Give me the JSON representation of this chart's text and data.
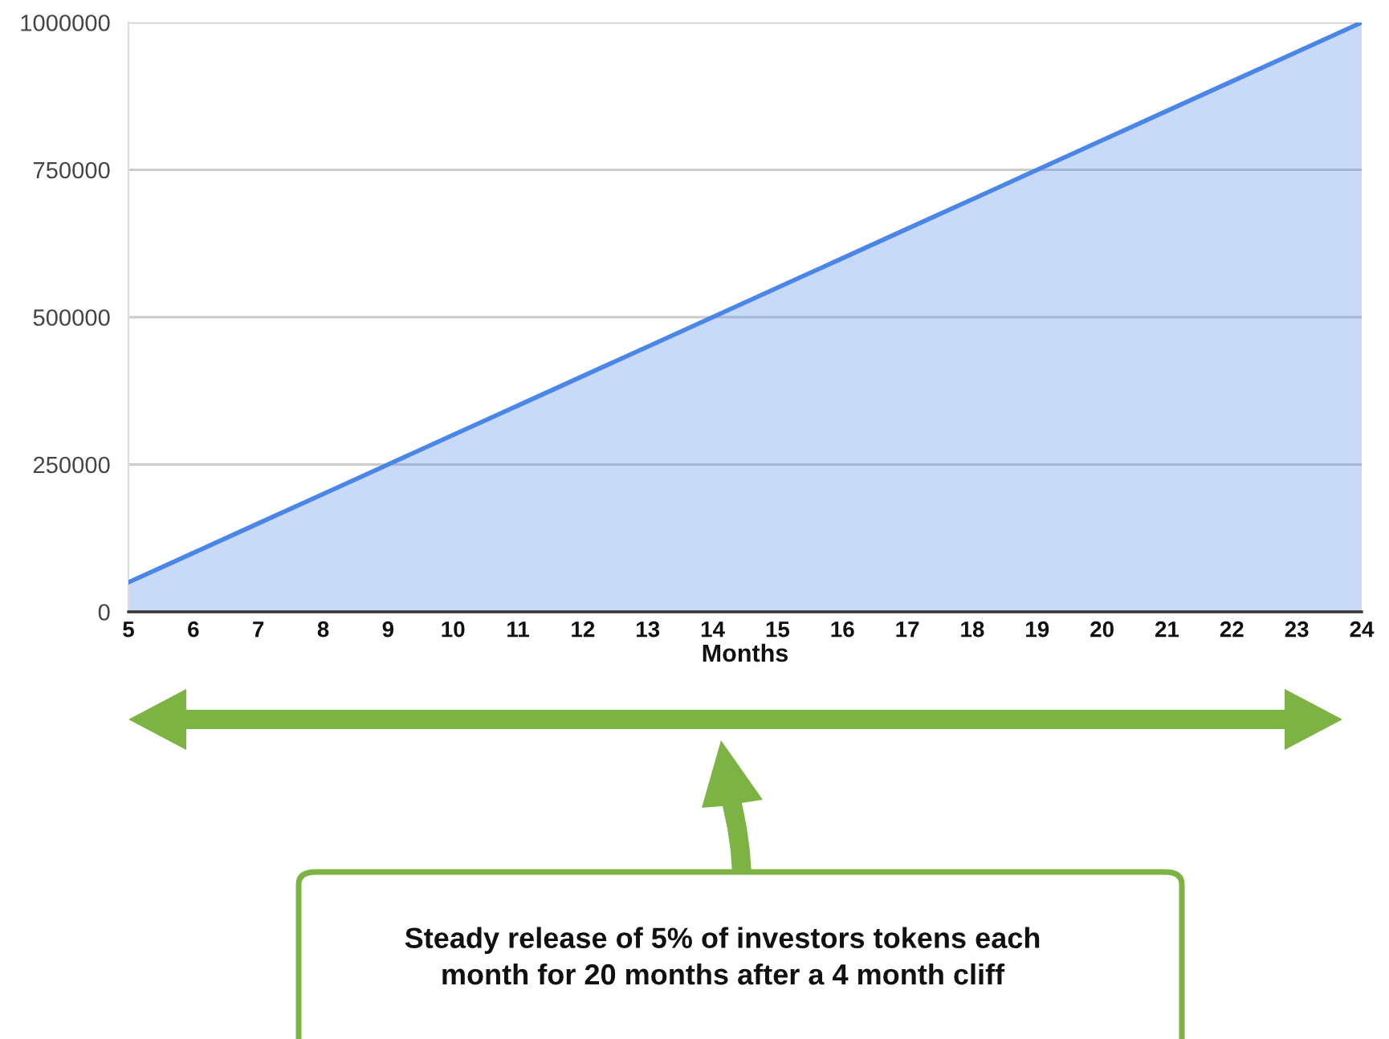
{
  "chart_data": {
    "type": "area",
    "xlabel": "Months",
    "x": [
      5,
      6,
      7,
      8,
      9,
      10,
      11,
      12,
      13,
      14,
      15,
      16,
      17,
      18,
      19,
      20,
      21,
      22,
      23,
      24
    ],
    "series": [
      {
        "color": "#4a86e8",
        "values": [
          50000,
          100000,
          150000,
          200000,
          250000,
          300000,
          350000,
          400000,
          450000,
          500000,
          550000,
          600000,
          650000,
          700000,
          750000,
          800000,
          850000,
          900000,
          950000,
          1000000
        ]
      }
    ],
    "xlim": [
      5,
      24
    ],
    "ylim": [
      0,
      1000000
    ],
    "xticks": [
      5,
      6,
      7,
      8,
      9,
      10,
      11,
      12,
      13,
      14,
      15,
      16,
      17,
      18,
      19,
      20,
      21,
      22,
      23,
      24
    ],
    "yticks": [
      0,
      250000,
      500000,
      750000,
      1000000
    ],
    "grid": "y",
    "annotations": [
      "Steady release of 5% of investors tokens each\nmonth for 20 months after a 4 month cliff"
    ]
  }
}
